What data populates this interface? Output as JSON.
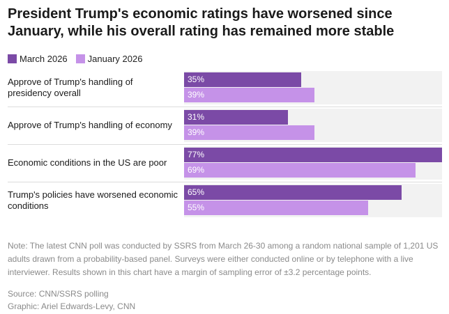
{
  "header": {
    "title": "President Trump's economic ratings have worsened since January, while his overall rating has remained more stable"
  },
  "colors": {
    "march": "#7b4aa6",
    "january": "#c592e8",
    "track": "#f2f2f2"
  },
  "chart_data": {
    "type": "bar",
    "orientation": "horizontal",
    "title": "President Trump's economic ratings have worsened since January, while his overall rating has remained more stable",
    "categories": [
      "Approve of Trump's handling of presidency overall",
      "Approve of Trump's handling of economy",
      "Economic conditions in the US are poor",
      "Trump's policies have worsened economic conditions"
    ],
    "series": [
      {
        "name": "March 2026",
        "values": [
          35,
          31,
          77,
          65
        ],
        "labels": [
          "35%",
          "31%",
          "77%",
          "65%"
        ]
      },
      {
        "name": "January 2026",
        "values": [
          39,
          39,
          69,
          55
        ],
        "labels": [
          "39%",
          "39%",
          "69%",
          "55%"
        ]
      }
    ],
    "xlim": [
      0,
      77
    ],
    "xlabel": "",
    "ylabel": "",
    "legend": "top-left"
  },
  "footer": {
    "note": "Note: The latest CNN poll was conducted by SSRS from March 26-30 among a random national sample of 1,201 US adults drawn from a probability-based panel. Surveys were either conducted online or by telephone with a live interviewer. Results shown in this chart have a margin of sampling error of ±3.2 percentage points.",
    "source": "Source: CNN/SSRS polling",
    "graphic": "Graphic: Ariel Edwards-Levy, CNN"
  }
}
